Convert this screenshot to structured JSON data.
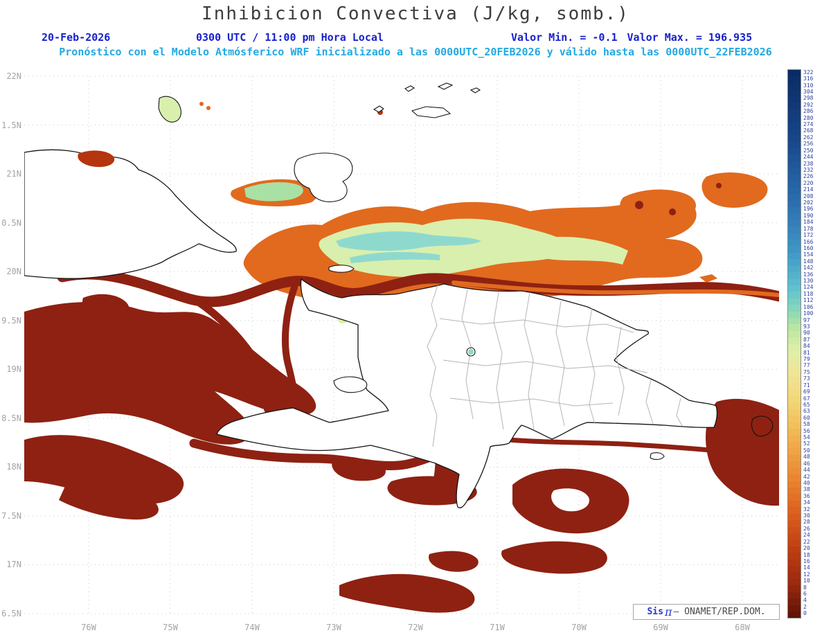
{
  "header": {
    "title": "Inhibicion Convectiva (J/kg, somb.)",
    "date": "20-Feb-2026",
    "time": "0300 UTC / 11:00 pm Hora Local",
    "min": "Valor Min. = -0.1",
    "max": "Valor Max. = 196.935",
    "model_line": "Pronóstico con el Modelo Atmósferico WRF inicializado a las 0000UTC_20FEB2026 y válido hasta las  0000UTC_22FEB2026"
  },
  "axes": {
    "y": [
      {
        "label": "22N",
        "lat": 22
      },
      {
        "label": "1.5N",
        "lat": 21.5
      },
      {
        "label": "21N",
        "lat": 21
      },
      {
        "label": "0.5N",
        "lat": 20.5
      },
      {
        "label": "20N",
        "lat": 20
      },
      {
        "label": "9.5N",
        "lat": 19.5
      },
      {
        "label": "19N",
        "lat": 19
      },
      {
        "label": "8.5N",
        "lat": 18.5
      },
      {
        "label": "18N",
        "lat": 18
      },
      {
        "label": "7.5N",
        "lat": 17.5
      },
      {
        "label": "17N",
        "lat": 17
      },
      {
        "label": "6.5N",
        "lat": 16.5
      }
    ],
    "x": [
      {
        "label": "76W",
        "lon": 76
      },
      {
        "label": "75W",
        "lon": 75
      },
      {
        "label": "74W",
        "lon": 74
      },
      {
        "label": "73W",
        "lon": 73
      },
      {
        "label": "72W",
        "lon": 72
      },
      {
        "label": "71W",
        "lon": 71
      },
      {
        "label": "70W",
        "lon": 70
      },
      {
        "label": "69W",
        "lon": 69
      },
      {
        "label": "68W",
        "lon": 68
      }
    ]
  },
  "colorbar": {
    "units": "J/kg",
    "labels": [
      "322",
      "316",
      "310",
      "304",
      "298",
      "292",
      "286",
      "280",
      "274",
      "268",
      "262",
      "256",
      "250",
      "244",
      "238",
      "232",
      "226",
      "220",
      "214",
      "208",
      "202",
      "196",
      "190",
      "184",
      "178",
      "172",
      "166",
      "160",
      "154",
      "148",
      "142",
      "136",
      "130",
      "124",
      "118",
      "112",
      "106",
      "100",
      "97",
      "93",
      "90",
      "87",
      "84",
      "81",
      "79",
      "77",
      "75",
      "73",
      "71",
      "69",
      "67",
      "65",
      "63",
      "60",
      "58",
      "56",
      "54",
      "52",
      "50",
      "48",
      "46",
      "44",
      "42",
      "40",
      "38",
      "36",
      "34",
      "32",
      "30",
      "28",
      "26",
      "24",
      "22",
      "20",
      "18",
      "16",
      "14",
      "12",
      "10",
      "8",
      "6",
      "4",
      "2",
      "0"
    ],
    "stops": [
      [
        0.0,
        "#0a2c64"
      ],
      [
        0.12,
        "#174689"
      ],
      [
        0.24,
        "#2b6fb0"
      ],
      [
        0.33,
        "#3f97c6"
      ],
      [
        0.4,
        "#62c3ce"
      ],
      [
        0.44,
        "#8ad8b8"
      ],
      [
        0.47,
        "#b8e6a0"
      ],
      [
        0.51,
        "#ddf0a8"
      ],
      [
        0.55,
        "#efe69a"
      ],
      [
        0.6,
        "#f2d878"
      ],
      [
        0.65,
        "#f2c05c"
      ],
      [
        0.7,
        "#efa243"
      ],
      [
        0.76,
        "#e87e2c"
      ],
      [
        0.82,
        "#d95a1c"
      ],
      [
        0.88,
        "#be3e12"
      ],
      [
        0.94,
        "#9c2a0e"
      ],
      [
        1.0,
        "#621407"
      ]
    ],
    "label_color": "#2b3f9e"
  },
  "map": {
    "palette": {
      "darkred": "#8e2112",
      "red": "#b5350f",
      "orange": "#e16a1f",
      "lightorange": "#f19b45",
      "palegreen": "#d9efad",
      "green": "#a9e0a4",
      "cyan": "#8ed9ce"
    }
  },
  "watermark": {
    "sis": "Sis",
    "pi": "π",
    "rest": "– ONAMET/REP.DOM."
  }
}
